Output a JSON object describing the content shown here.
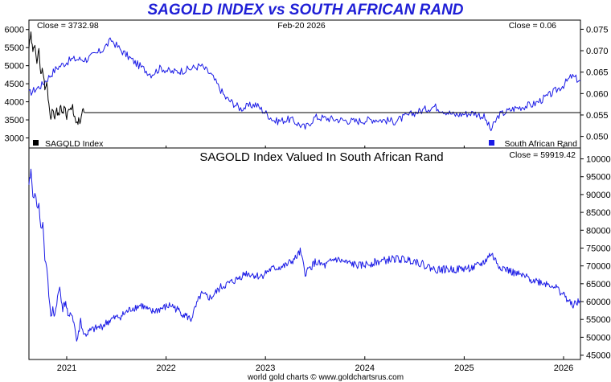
{
  "page": {
    "title": "SAGOLD INDEX vs SOUTH AFRICAN RAND",
    "footer": "world gold charts © www.goldchartsrus.com"
  },
  "colors": {
    "sagold": "#000000",
    "rand": "#1a1ae6",
    "title": "#1f1fd6",
    "frame": "#000000"
  },
  "chart_data": [
    {
      "type": "line",
      "panel": "top",
      "date_label": "Feb-20  2026",
      "close_left_label": "Close = 3732.98",
      "close_right_label": "Close = 0.06",
      "left_axis": {
        "ticks": [
          3000,
          3500,
          4000,
          4500,
          5000,
          5500,
          6000
        ],
        "ylim": [
          2900,
          6150
        ]
      },
      "right_axis": {
        "ticks": [
          0.05,
          0.055,
          0.06,
          0.065,
          0.07,
          0.075
        ],
        "tick_labels": [
          "0.050",
          "0.055",
          "0.060",
          "0.065",
          "0.070",
          "0.075"
        ],
        "ylim": [
          0.0488,
          0.0762
        ]
      },
      "x_axis": {
        "ticks": [
          "2021",
          "2022",
          "2023",
          "2024",
          "2025",
          "2026"
        ],
        "tick_dates": [
          2021.0,
          2022.0,
          2023.0,
          2024.0,
          2025.0,
          2026.0
        ],
        "xlim": [
          2020.62,
          2026.17
        ]
      },
      "legend": {
        "left": "SAGOLD Index",
        "right": "South African Rand",
        "placement": "bottom"
      },
      "series": [
        {
          "name": "SAGOLD Index",
          "axis": "left",
          "x": [
            2020.62,
            2020.64,
            2020.66,
            2020.68,
            2020.7,
            2020.72,
            2020.74,
            2020.76,
            2020.78,
            2020.8,
            2020.82,
            2020.84,
            2020.86,
            2020.88,
            2020.9,
            2020.92,
            2020.94,
            2020.96,
            2020.98,
            2021.0,
            2021.02,
            2021.04,
            2021.06,
            2021.08,
            2021.1,
            2021.12,
            2021.14,
            2021.16,
            2021.18
          ],
          "y": [
            5500,
            5850,
            5350,
            5650,
            5100,
            5400,
            4800,
            4900,
            4350,
            4500,
            3950,
            3550,
            3800,
            3600,
            3750,
            3650,
            3850,
            3700,
            3900,
            3600,
            3800,
            3750,
            3850,
            3550,
            3350,
            3500,
            3400,
            3800,
            3700
          ],
          "final_level": 3700,
          "final_level_range": [
            2021.18,
            2026.17
          ]
        },
        {
          "name": "South African Rand",
          "axis": "right",
          "x": [
            2020.62,
            2020.75,
            2020.9,
            2021.05,
            2021.2,
            2021.35,
            2021.45,
            2021.55,
            2021.7,
            2021.85,
            2021.95,
            2022.05,
            2022.2,
            2022.35,
            2022.45,
            2022.6,
            2022.75,
            2022.9,
            2023.1,
            2023.25,
            2023.4,
            2023.5,
            2023.7,
            2023.9,
            2024.1,
            2024.3,
            2024.5,
            2024.7,
            2024.9,
            2025.1,
            2025.2,
            2025.27,
            2025.35,
            2025.5,
            2025.7,
            2025.85,
            2026.0,
            2026.08,
            2026.17
          ],
          "y": [
            0.06,
            0.062,
            0.066,
            0.068,
            0.068,
            0.07,
            0.0725,
            0.07,
            0.067,
            0.0645,
            0.066,
            0.065,
            0.0655,
            0.0665,
            0.0645,
            0.059,
            0.0565,
            0.0575,
            0.0535,
            0.054,
            0.052,
            0.0545,
            0.054,
            0.0535,
            0.054,
            0.0535,
            0.0555,
            0.057,
            0.055,
            0.0555,
            0.0545,
            0.0515,
            0.055,
            0.0565,
            0.0575,
            0.0595,
            0.062,
            0.064,
            0.063
          ]
        }
      ]
    },
    {
      "type": "line",
      "panel": "bottom",
      "title": "SAGOLD Index Valued In South African Rand",
      "close_label": "Close = 59919.42",
      "right_axis": {
        "ticks": [
          45000,
          50000,
          55000,
          60000,
          65000,
          70000,
          75000,
          80000,
          85000,
          90000,
          95000,
          100000
        ],
        "ylim": [
          44000,
          100800
        ]
      },
      "x_axis": {
        "ticks": [
          "2021",
          "2022",
          "2023",
          "2024",
          "2025",
          "2026"
        ],
        "tick_dates": [
          2021.0,
          2022.0,
          2023.0,
          2024.0,
          2025.0,
          2026.0
        ],
        "xlim": [
          2020.62,
          2026.17
        ]
      },
      "series": [
        {
          "name": "SAGOLD Index Valued In South African Rand",
          "x": [
            2020.62,
            2020.64,
            2020.66,
            2020.68,
            2020.7,
            2020.72,
            2020.74,
            2020.76,
            2020.78,
            2020.8,
            2020.82,
            2020.84,
            2020.86,
            2020.88,
            2020.9,
            2020.93,
            2020.96,
            2020.99,
            2021.02,
            2021.05,
            2021.08,
            2021.1,
            2021.12,
            2021.14,
            2021.16,
            2021.18,
            2021.25,
            2021.35,
            2021.45,
            2021.55,
            2021.65,
            2021.75,
            2021.85,
            2021.95,
            2022.05,
            2022.2,
            2022.25,
            2022.35,
            2022.45,
            2022.55,
            2022.7,
            2022.8,
            2022.95,
            2023.05,
            2023.2,
            2023.3,
            2023.35,
            2023.4,
            2023.5,
            2023.6,
            2023.7,
            2023.8,
            2023.95,
            2024.1,
            2024.3,
            2024.5,
            2024.7,
            2024.9,
            2025.1,
            2025.2,
            2025.27,
            2025.35,
            2025.5,
            2025.7,
            2025.9,
            2026.0,
            2026.08,
            2026.17
          ],
          "y": [
            92000,
            97000,
            89000,
            91000,
            86000,
            88000,
            80000,
            82000,
            72000,
            70000,
            62000,
            55000,
            58000,
            56000,
            60000,
            64000,
            58000,
            60000,
            55000,
            57000,
            53000,
            49000,
            51000,
            55000,
            52000,
            50500,
            52000,
            53000,
            55000,
            56000,
            58000,
            59000,
            57000,
            58000,
            59000,
            56000,
            55000,
            62000,
            61000,
            64000,
            66000,
            68000,
            67000,
            69000,
            70000,
            72000,
            74000,
            68000,
            71000,
            70000,
            72000,
            71000,
            70000,
            71000,
            72000,
            71500,
            69000,
            69000,
            69500,
            71000,
            73500,
            70000,
            68000,
            66000,
            64500,
            62000,
            59000,
            60000
          ]
        }
      ]
    }
  ]
}
